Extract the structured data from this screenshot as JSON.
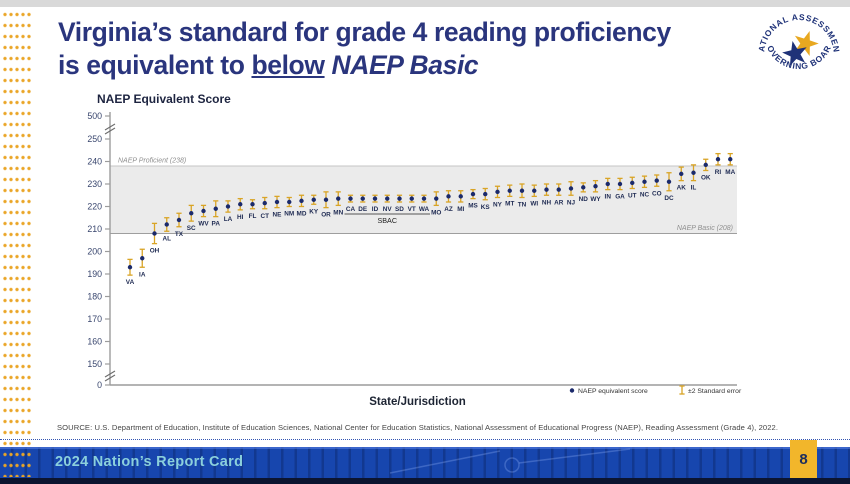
{
  "slide": {
    "title_line1": "Virginia’s standard for grade 4 reading proficiency",
    "title_line2_prefix": "is equivalent to ",
    "title_line2_underlined": "below",
    "title_line2_italic": " NAEP Basic",
    "source": "SOURCE: U.S. Department of Education, Institute of Education Sciences, National Center for Education Statistics, National Assessment of Educational Progress (NAEP), Reading Assessment (Grade 4), 2022.",
    "footer_brand": "2024 Nation’s Report Card",
    "page_number": "8"
  },
  "logo": {
    "name": "National Assessment Governing Board seal",
    "arc_top": "NATIONAL ASSESSMENT",
    "arc_bottom": "GOVERNING BOARD",
    "navy": "#1f3278",
    "gold": "#e8a820"
  },
  "chart_data": {
    "type": "scatter",
    "title": "",
    "y_axis": {
      "label": "NAEP Equivalent Score",
      "ticks": [
        0,
        150,
        160,
        170,
        180,
        190,
        200,
        210,
        220,
        230,
        240,
        250,
        500
      ],
      "breaks": [
        [
          0,
          150
        ],
        [
          250,
          500
        ]
      ]
    },
    "x_axis": {
      "label": "State/Jurisdiction"
    },
    "band": {
      "from": 208,
      "to": 238,
      "color": "#ebebeb"
    },
    "reference_lines": [
      {
        "label": "NAEP Proficient (238)",
        "value": 238,
        "align": "left"
      },
      {
        "label": "NAEP Basic (208)",
        "value": 208,
        "align": "right"
      }
    ],
    "legend": [
      {
        "label": "NAEP equivalent score",
        "marker": "dot",
        "color": "#1b2a6b"
      },
      {
        "label": "±2 Standard error",
        "marker": "error-bar",
        "color": "#d9a425"
      }
    ],
    "group_annotation": {
      "label": "SBAC",
      "from": "CA",
      "to": "WA"
    },
    "marker_color": "#1b2a6b",
    "error_color": "#d9a425",
    "points": [
      {
        "state": "VA",
        "score": 193,
        "se2": 3.5
      },
      {
        "state": "IA",
        "score": 197,
        "se2": 4
      },
      {
        "state": "OH",
        "score": 208,
        "se2": 4.5
      },
      {
        "state": "AL",
        "score": 212,
        "se2": 3
      },
      {
        "state": "TX",
        "score": 214,
        "se2": 3
      },
      {
        "state": "SC",
        "score": 217,
        "se2": 3.5
      },
      {
        "state": "WV",
        "score": 218,
        "se2": 2.5
      },
      {
        "state": "PA",
        "score": 219,
        "se2": 3.5
      },
      {
        "state": "LA",
        "score": 220,
        "se2": 2.5
      },
      {
        "state": "HI",
        "score": 221,
        "se2": 2.5
      },
      {
        "state": "FL",
        "score": 221,
        "se2": 2
      },
      {
        "state": "CT",
        "score": 221.5,
        "se2": 2.5
      },
      {
        "state": "NE",
        "score": 222,
        "se2": 2.5
      },
      {
        "state": "NM",
        "score": 222,
        "se2": 2
      },
      {
        "state": "MD",
        "score": 222.5,
        "se2": 2.5
      },
      {
        "state": "KY",
        "score": 223,
        "se2": 2
      },
      {
        "state": "OR",
        "score": 223,
        "se2": 3.5
      },
      {
        "state": "MN",
        "score": 223.5,
        "se2": 3
      },
      {
        "state": "CA",
        "score": 223.5,
        "se2": 1.5
      },
      {
        "state": "DE",
        "score": 223.5,
        "se2": 1.5
      },
      {
        "state": "ID",
        "score": 223.5,
        "se2": 1.5
      },
      {
        "state": "NV",
        "score": 223.5,
        "se2": 1.5
      },
      {
        "state": "SD",
        "score": 223.5,
        "se2": 1.5
      },
      {
        "state": "VT",
        "score": 223.5,
        "se2": 1.5
      },
      {
        "state": "WA",
        "score": 223.5,
        "se2": 1.5
      },
      {
        "state": "MO",
        "score": 223.5,
        "se2": 3
      },
      {
        "state": "AZ",
        "score": 224.5,
        "se2": 2.5
      },
      {
        "state": "MI",
        "score": 224.5,
        "se2": 2.5
      },
      {
        "state": "MS",
        "score": 225.5,
        "se2": 2
      },
      {
        "state": "KS",
        "score": 225.5,
        "se2": 2.5
      },
      {
        "state": "NY",
        "score": 226.5,
        "se2": 2.5
      },
      {
        "state": "MT",
        "score": 227,
        "se2": 2.5
      },
      {
        "state": "TN",
        "score": 227,
        "se2": 3
      },
      {
        "state": "WI",
        "score": 227,
        "se2": 2.5
      },
      {
        "state": "NH",
        "score": 227.5,
        "se2": 2.5
      },
      {
        "state": "AR",
        "score": 227.5,
        "se2": 2.5
      },
      {
        "state": "NJ",
        "score": 228,
        "se2": 3
      },
      {
        "state": "ND",
        "score": 228.5,
        "se2": 2
      },
      {
        "state": "WY",
        "score": 229,
        "se2": 2.5
      },
      {
        "state": "IN",
        "score": 230,
        "se2": 2.5
      },
      {
        "state": "GA",
        "score": 230,
        "se2": 2.5
      },
      {
        "state": "UT",
        "score": 230.5,
        "se2": 2.5
      },
      {
        "state": "NC",
        "score": 231,
        "se2": 2.5
      },
      {
        "state": "CO",
        "score": 231.5,
        "se2": 2.5
      },
      {
        "state": "DC",
        "score": 231,
        "se2": 4
      },
      {
        "state": "AK",
        "score": 234.5,
        "se2": 3
      },
      {
        "state": "IL",
        "score": 235,
        "se2": 3.5
      },
      {
        "state": "OK",
        "score": 238.5,
        "se2": 2.5
      },
      {
        "state": "RI",
        "score": 241,
        "se2": 2.5
      },
      {
        "state": "MA",
        "score": 241,
        "se2": 2.5
      }
    ]
  },
  "colors": {
    "title": "#2a357d",
    "footer_bar": "#1746ae",
    "page_tab": "#f2b62b",
    "dot_pattern": "#eaa526",
    "band": "#ebebeb"
  }
}
